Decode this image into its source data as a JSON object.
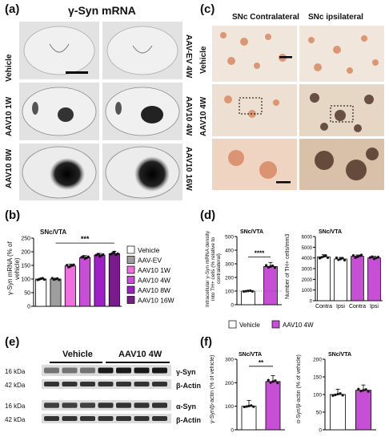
{
  "panel_a": {
    "letter": "(a)",
    "title": "γ-Syn mRNA",
    "row_labels_left": [
      "Vehicle",
      "AAV10 1W",
      "AAV10 8W"
    ],
    "row_labels_right": [
      "AAV-EV 4W",
      "AAV10 4W",
      "AAV10 16W"
    ]
  },
  "panel_c": {
    "letter": "(c)",
    "col_titles": [
      "SNc Contralateral",
      "SNc ipsilateral"
    ],
    "row_labels": [
      "Vehicle",
      "AAV10 4W"
    ]
  },
  "panel_b": {
    "letter": "(b)",
    "region": "SNc/VTA",
    "legend": [
      "Vehicle",
      "AAV-EV",
      "AAV10 1W",
      "AAV10 4W",
      "AAV10 8W",
      "AAV10 16W"
    ],
    "legend_colors": [
      "#ffffff",
      "#9e9e9e",
      "#f06ee0",
      "#c74fd6",
      "#a020c8",
      "#7a1a8e"
    ],
    "significance": "***"
  },
  "panel_d": {
    "letter": "(d)",
    "region_left": "SNc/VTA",
    "region_right": "SNc/VTA",
    "significance": "****",
    "legend": [
      "Vehicle",
      "AAV10 4W"
    ],
    "xticks_right": [
      "Contra",
      "Ipsi",
      "Contra",
      "Ipsi"
    ]
  },
  "panel_e": {
    "letter": "(e)",
    "groups": [
      "Vehicle",
      "AAV10 4W"
    ],
    "kda": [
      "16 kDa",
      "42 kDa",
      "16 kDa",
      "42 kDa"
    ],
    "bands": [
      "γ-Syn",
      "β-Actin",
      "α-Syn",
      "β-Actin"
    ]
  },
  "panel_f": {
    "letter": "(f)",
    "region_left": "SNc/VTA",
    "region_right": "SNc/VTA",
    "significance": "**"
  },
  "chart_data": [
    {
      "type": "bar",
      "id": "b",
      "title": "SNc/VTA",
      "ylabel": "γ-Syn mRNA (% of vehicle)",
      "ylim": [
        0,
        250
      ],
      "yticks": [
        0,
        50,
        100,
        150,
        200,
        250
      ],
      "categories": [
        "Vehicle",
        "AAV-EV",
        "AAV10 1W",
        "AAV10 4W",
        "AAV10 8W",
        "AAV10 16W"
      ],
      "values": [
        100,
        100,
        148,
        178,
        188,
        193
      ],
      "errors": [
        3,
        3,
        7,
        8,
        6,
        9
      ]
    },
    {
      "type": "bar",
      "id": "d-left",
      "title": "SNc/VTA",
      "ylabel": "Intracellular γ-Syn mRNA density into TH+ cells (% relative to contralateral)",
      "ylim": [
        0,
        500
      ],
      "yticks": [
        0,
        100,
        200,
        300,
        400,
        500
      ],
      "categories": [
        "Vehicle",
        "AAV10 4W"
      ],
      "values": [
        100,
        280
      ],
      "errors": [
        5,
        30
      ]
    },
    {
      "type": "bar",
      "id": "d-right",
      "title": "SNc/VTA",
      "ylabel": "Number of TH+ cells/mm3",
      "ylim": [
        0,
        6000
      ],
      "yticks": [
        0,
        1000,
        2000,
        3000,
        4000,
        5000,
        6000
      ],
      "categories": [
        "Contra",
        "Ipsi",
        "Contra",
        "Ipsi"
      ],
      "values": [
        4100,
        3900,
        4150,
        4000
      ],
      "errors": [
        200,
        150,
        120,
        150
      ]
    },
    {
      "type": "bar",
      "id": "f-left",
      "title": "SNc/VTA",
      "ylabel": "γ-Syn/β-actin (% of vehicle)",
      "ylim": [
        0,
        300
      ],
      "yticks": [
        0,
        100,
        200,
        300
      ],
      "categories": [
        "Vehicle",
        "AAV10 4W"
      ],
      "values": [
        100,
        205
      ],
      "errors": [
        25,
        25
      ]
    },
    {
      "type": "bar",
      "id": "f-right",
      "title": "SNc/VTA",
      "ylabel": "α-Syn/β-actin (% of vehicle)",
      "ylim": [
        0,
        200
      ],
      "yticks": [
        0,
        50,
        100,
        150,
        200
      ],
      "categories": [
        "Vehicle",
        "AAV10 4W"
      ],
      "values": [
        100,
        112
      ],
      "errors": [
        15,
        15
      ]
    }
  ]
}
